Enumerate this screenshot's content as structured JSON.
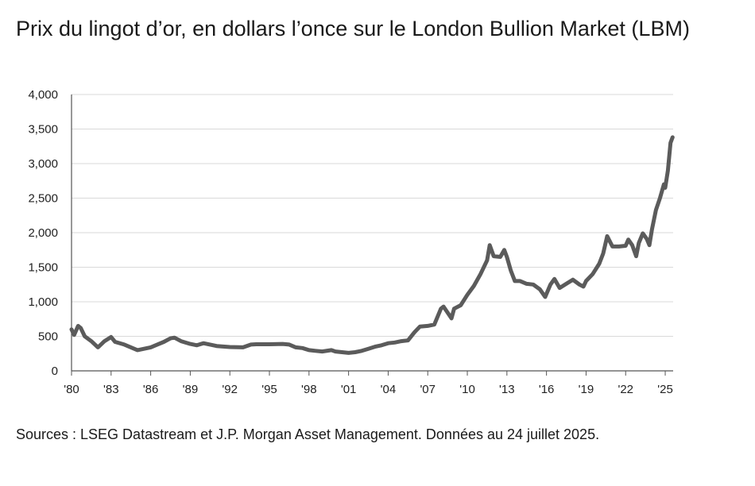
{
  "chart_data": {
    "type": "line",
    "title": "Prix du lingot d’or, en dollars l’once sur le London Bullion Market (LBM)",
    "xlabel": "",
    "ylabel": "",
    "xlim": [
      1980,
      2025.6
    ],
    "ylim": [
      0,
      4000
    ],
    "y_ticks": [
      0,
      500,
      1000,
      1500,
      2000,
      2500,
      3000,
      3500,
      4000
    ],
    "y_tick_labels": [
      "0",
      "500",
      "1,000",
      "1,500",
      "2,000",
      "2,500",
      "3,000",
      "3,500",
      "4,000"
    ],
    "x_ticks": [
      1980,
      1983,
      1986,
      1989,
      1992,
      1995,
      1998,
      2001,
      2004,
      2007,
      2010,
      2013,
      2016,
      2019,
      2022,
      2025
    ],
    "x_tick_labels": [
      "'80",
      "'83",
      "'86",
      "'89",
      "'92",
      "'95",
      "'98",
      "'01",
      "'04",
      "'07",
      "'10",
      "'13",
      "'16",
      "'19",
      "'22",
      "'25"
    ],
    "grid": true,
    "line_color": "#5b5b5b",
    "series": [
      {
        "x": [
          1980.0,
          1980.2,
          1980.5,
          1980.7,
          1981.0,
          1981.5,
          1982.0,
          1982.5,
          1983.0,
          1983.3,
          1984.0,
          1984.5,
          1985.0,
          1985.5,
          1986.0,
          1986.5,
          1987.0,
          1987.5,
          1987.8,
          1988.3,
          1989.0,
          1989.5,
          1990.0,
          1990.5,
          1991.0,
          1992.0,
          1993.0,
          1993.6,
          1994.0,
          1995.0,
          1996.0,
          1996.5,
          1997.0,
          1997.5,
          1998.0,
          1998.5,
          1999.0,
          1999.7,
          2000.0,
          2000.5,
          2001.0,
          2001.5,
          2002.0,
          2002.5,
          2003.0,
          2003.5,
          2004.0,
          2004.5,
          2005.0,
          2005.5,
          2006.0,
          2006.4,
          2007.0,
          2007.5,
          2008.0,
          2008.2,
          2008.8,
          2009.0,
          2009.5,
          2010.0,
          2010.5,
          2011.0,
          2011.5,
          2011.7,
          2012.0,
          2012.5,
          2012.8,
          2013.0,
          2013.3,
          2013.6,
          2014.0,
          2014.5,
          2015.0,
          2015.5,
          2015.9,
          2016.3,
          2016.6,
          2017.0,
          2017.5,
          2018.0,
          2018.5,
          2018.8,
          2019.0,
          2019.5,
          2020.0,
          2020.3,
          2020.6,
          2021.0,
          2021.5,
          2022.0,
          2022.2,
          2022.5,
          2022.8,
          2023.0,
          2023.3,
          2023.6,
          2023.8,
          2024.0,
          2024.3,
          2024.6,
          2024.9,
          2025.0,
          2025.2,
          2025.4,
          2025.56
        ],
        "values": [
          600,
          520,
          650,
          620,
          500,
          430,
          340,
          430,
          490,
          420,
          380,
          340,
          300,
          320,
          340,
          380,
          420,
          470,
          480,
          430,
          390,
          370,
          400,
          380,
          360,
          345,
          340,
          380,
          385,
          385,
          390,
          380,
          340,
          330,
          300,
          290,
          280,
          300,
          280,
          270,
          260,
          270,
          290,
          320,
          350,
          370,
          400,
          410,
          430,
          440,
          560,
          640,
          650,
          670,
          900,
          930,
          760,
          900,
          950,
          1100,
          1230,
          1400,
          1600,
          1820,
          1660,
          1650,
          1750,
          1650,
          1450,
          1300,
          1300,
          1260,
          1250,
          1180,
          1070,
          1250,
          1330,
          1200,
          1260,
          1320,
          1250,
          1220,
          1300,
          1400,
          1550,
          1700,
          1950,
          1800,
          1800,
          1810,
          1900,
          1820,
          1660,
          1850,
          1990,
          1910,
          1820,
          2050,
          2330,
          2500,
          2700,
          2650,
          2900,
          3300,
          3380
        ]
      }
    ]
  },
  "source": "Sources : LSEG Datastream et J.P. Morgan Asset Management. Données au 24 juillet 2025."
}
